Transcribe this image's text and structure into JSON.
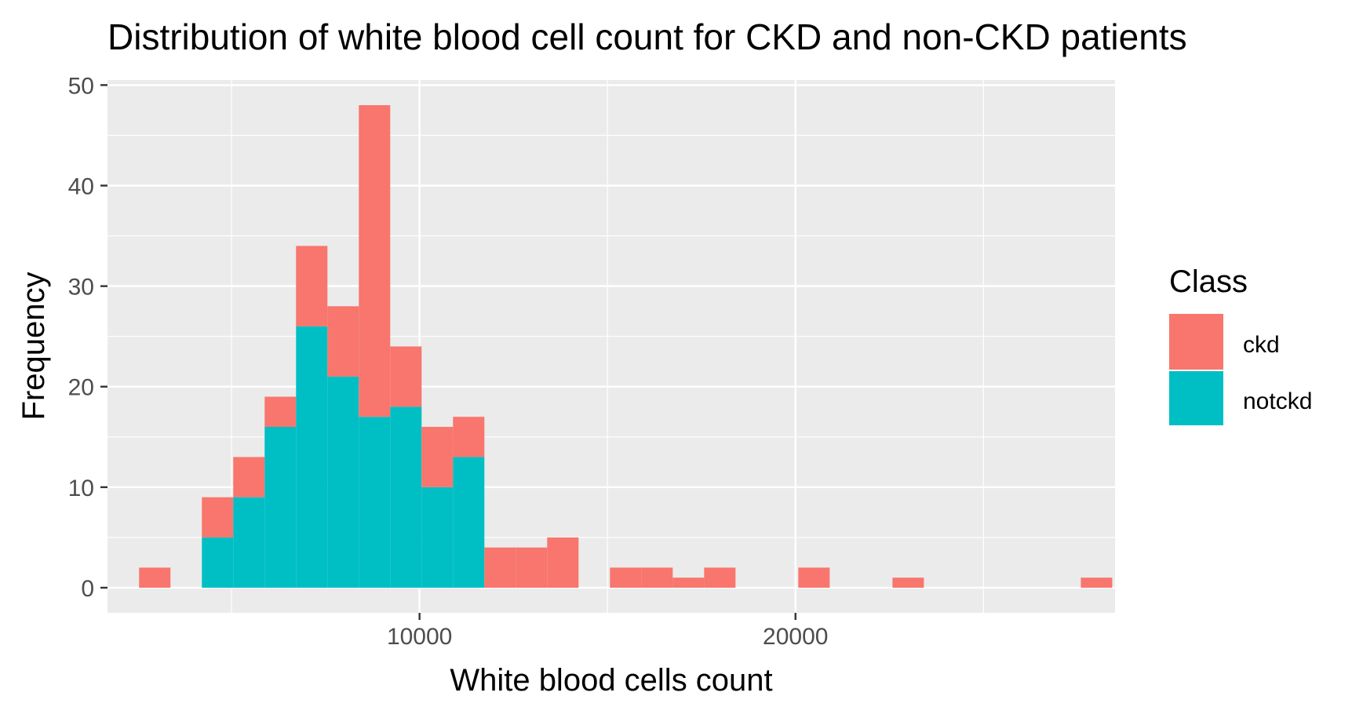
{
  "chart_data": {
    "type": "bar",
    "title": "Distribution of white blood cell count for CKD and non-CKD patients",
    "xlabel": "White blood cells count",
    "ylabel": "Frequency",
    "xlim": [
      1700,
      28500
    ],
    "ylim": [
      -2.5,
      50.5
    ],
    "x_ticks": [
      10000,
      20000
    ],
    "y_ticks": [
      0,
      10,
      20,
      30,
      40,
      50
    ],
    "bin_width": 835,
    "bin_start": 2540,
    "grid": true,
    "legend": {
      "title": "Class",
      "position": "right",
      "entries": [
        {
          "label": "ckd",
          "color": "#F8766D"
        },
        {
          "label": "notckd",
          "color": "#00BFC4"
        }
      ]
    },
    "series": [
      {
        "name": "ckd",
        "color": "#F8766D",
        "values": [
          2,
          0,
          4,
          4,
          3,
          8,
          7,
          31,
          6,
          6,
          4,
          4,
          4,
          5,
          0,
          2,
          2,
          1,
          2,
          0,
          0,
          2,
          0,
          0,
          1,
          0,
          0,
          0,
          0,
          0,
          1
        ]
      },
      {
        "name": "notckd",
        "color": "#00BFC4",
        "values": [
          0,
          0,
          5,
          9,
          16,
          26,
          21,
          17,
          18,
          10,
          13,
          0,
          0,
          0,
          0,
          0,
          0,
          0,
          0,
          0,
          0,
          0,
          0,
          0,
          0,
          0,
          0,
          0,
          0,
          0,
          0
        ]
      }
    ]
  }
}
